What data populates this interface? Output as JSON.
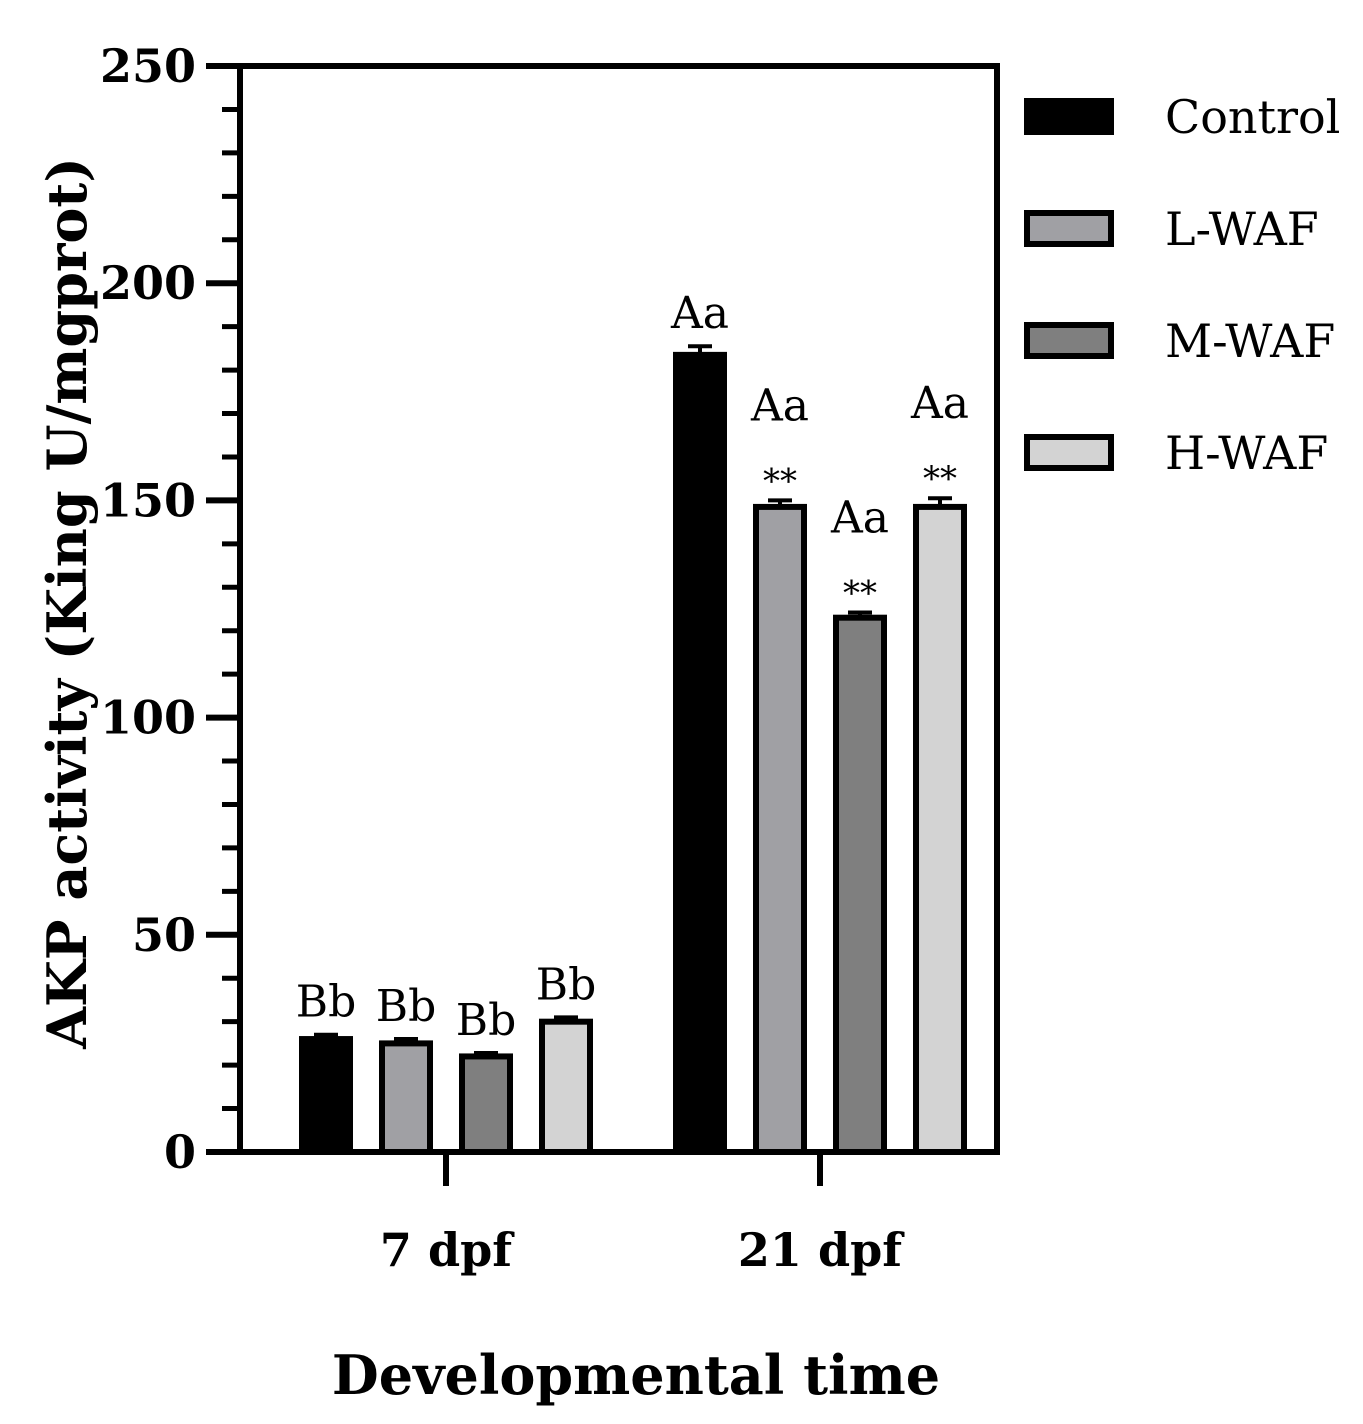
{
  "chart_data": {
    "type": "bar",
    "title": "",
    "xlabel": "Developmental time",
    "ylabel": "AKP activity (King U/mgprot)",
    "ylim": [
      0,
      250
    ],
    "yticks": [
      0,
      50,
      100,
      150,
      200,
      250
    ],
    "yticks_minor_step": 10,
    "categories": [
      "7 dpf",
      "21 dpf"
    ],
    "legend_position": "right",
    "series": [
      {
        "name": "Control",
        "color": "#000000",
        "values": [
          26,
          183.5
        ],
        "errors": [
          1,
          2
        ],
        "letters": [
          "Bb",
          "Aa"
        ],
        "stars": [
          "",
          ""
        ]
      },
      {
        "name": "L-WAF",
        "color": "#a0a0a4",
        "values": [
          25,
          148.5
        ],
        "errors": [
          1,
          1.5
        ],
        "letters": [
          "Bb",
          "Aa"
        ],
        "stars": [
          "",
          "**"
        ]
      },
      {
        "name": "M-WAF",
        "color": "#7f7f7f",
        "values": [
          22,
          123
        ],
        "errors": [
          0.8,
          1.2
        ],
        "letters": [
          "Bb",
          "Aa"
        ],
        "stars": [
          "",
          "**"
        ]
      },
      {
        "name": "H-WAF",
        "color": "#d3d3d3",
        "values": [
          30,
          148.5
        ],
        "errors": [
          1,
          2
        ],
        "letters": [
          "Bb",
          "Aa"
        ],
        "stars": [
          "",
          "**"
        ]
      }
    ]
  }
}
